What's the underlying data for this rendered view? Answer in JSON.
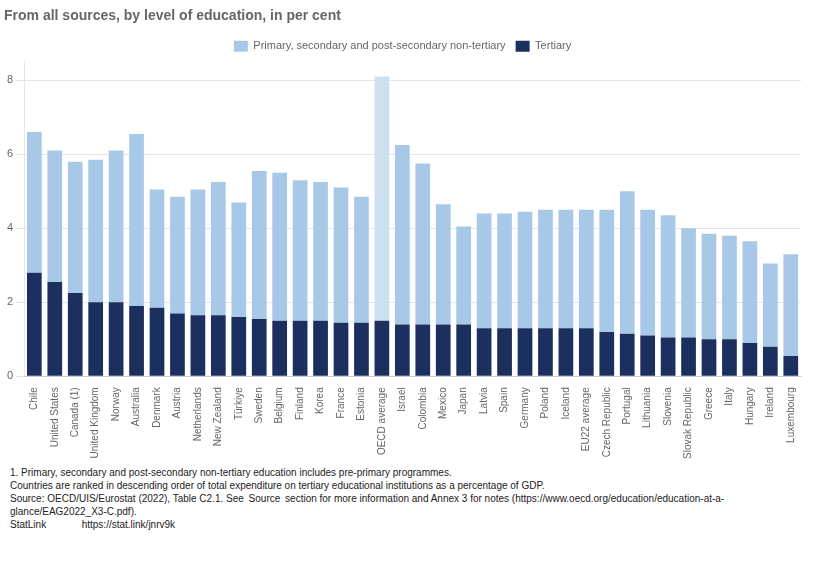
{
  "chart_data": {
    "type": "bar",
    "stacked": true,
    "title": "From all sources, by level of education, in per cent",
    "categories": [
      "Chile",
      "United States",
      "Canada (1)",
      "United Kingdom",
      "Norway",
      "Australia",
      "Denmark",
      "Austria",
      "Netherlands",
      "New Zealand",
      "Türkiye",
      "Sweden",
      "Belgium",
      "Finland",
      "Korea",
      "France",
      "Estonia",
      "OECD average",
      "Israel",
      "Colombia",
      "Mexico",
      "Japan",
      "Latvia",
      "Spain",
      "Germany",
      "Poland",
      "Iceland",
      "EU22 average",
      "Czech Republic",
      "Portugal",
      "Lithuania",
      "Slovenia",
      "Slovak Republic",
      "Greece",
      "Italy",
      "Hungary",
      "Ireland",
      "Luxembourg"
    ],
    "series": [
      {
        "name": "Tertiary",
        "color": "#1c3060",
        "values": [
          2.8,
          2.55,
          2.25,
          2.0,
          2.0,
          1.9,
          1.85,
          1.7,
          1.65,
          1.65,
          1.6,
          1.55,
          1.5,
          1.5,
          1.5,
          1.45,
          1.45,
          1.5,
          1.4,
          1.4,
          1.4,
          1.4,
          1.3,
          1.3,
          1.3,
          1.3,
          1.3,
          1.3,
          1.2,
          1.15,
          1.1,
          1.05,
          1.05,
          1.0,
          1.0,
          0.9,
          0.8,
          0.55
        ]
      },
      {
        "name": "Primary, secondary and post-secondary non-tertiary",
        "color": "#a8c8e8",
        "colors": [
          "#a8c8e8",
          "#a8c8e8",
          "#a8c8e8",
          "#a8c8e8",
          "#a8c8e8",
          "#a8c8e8",
          "#a8c8e8",
          "#a8c8e8",
          "#a8c8e8",
          "#a8c8e8",
          "#a8c8e8",
          "#a8c8e8",
          "#a8c8e8",
          "#a8c8e8",
          "#a8c8e8",
          "#a8c8e8",
          "#a8c8e8",
          "#cce0f0",
          "#a8c8e8",
          "#a8c8e8",
          "#a8c8e8",
          "#a8c8e8",
          "#a8c8e8",
          "#a8c8e8",
          "#a8c8e8",
          "#a8c8e8",
          "#a8c8e8",
          "#a8c8e8",
          "#a8c8e8",
          "#a8c8e8",
          "#a8c8e8",
          "#a8c8e8",
          "#a8c8e8",
          "#a8c8e8",
          "#a8c8e8",
          "#a8c8e8",
          "#a8c8e8",
          "#a8c8e8"
        ],
        "values": [
          3.8,
          3.55,
          3.55,
          3.85,
          4.1,
          4.65,
          3.2,
          3.15,
          3.4,
          3.6,
          3.1,
          4.0,
          4.0,
          3.8,
          3.75,
          3.65,
          3.4,
          6.6,
          4.85,
          4.35,
          3.25,
          2.65,
          3.1,
          3.1,
          3.15,
          3.2,
          3.2,
          3.2,
          3.3,
          3.85,
          3.4,
          3.3,
          2.95,
          2.85,
          2.8,
          2.75,
          2.25,
          2.75
        ]
      }
    ],
    "ylim": [
      0,
      8.5
    ],
    "yticks": [
      0,
      2,
      4,
      6,
      8
    ],
    "grid": true,
    "legend": "top",
    "annotations": [
      "1. Primary, secondary and post-secondary non-tertiary education includes pre-primary programmes.",
      "Countries are ranked in descending order of total expenditure on tertiary educational institutions as a percentage of GDP.",
      "Source: OECD/UIS/Eurostat (2022), Table C2.1. See  Source  section for more information and Annex 3 for notes (https://www.oecd.org/education/education-at-a-",
      "glance/EAG2022_X3-C.pdf).",
      "StatLink     https://stat.link/jnrv9k"
    ]
  }
}
